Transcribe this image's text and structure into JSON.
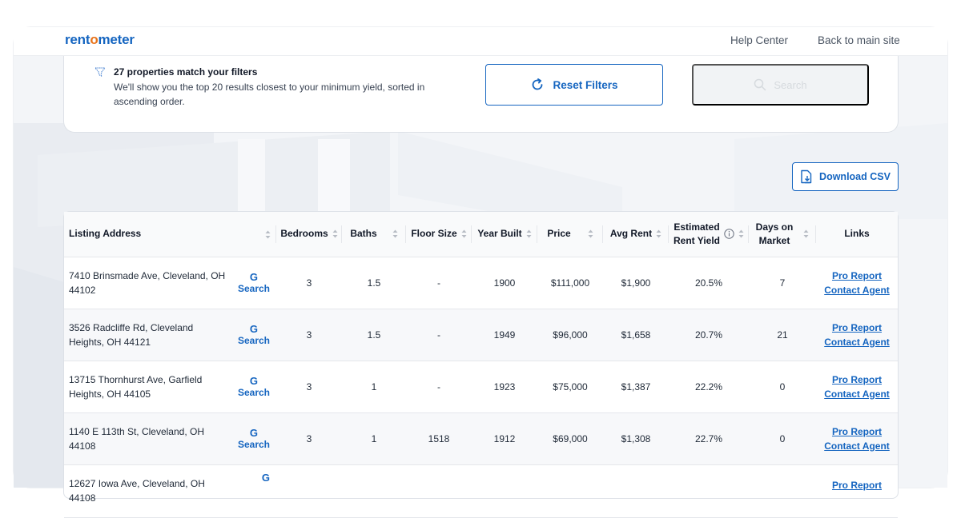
{
  "header": {
    "logo_prefix": "rent",
    "logo_o": "o",
    "logo_suffix": "meter",
    "help_center": "Help Center",
    "back_to_main": "Back to main site"
  },
  "filters": {
    "match_title": "27 properties match your filters",
    "match_desc": "We'll show you the top 20 results closest to your minimum yield, sorted in ascending order.",
    "reset_label": "Reset Filters",
    "search_label": "Search"
  },
  "download": {
    "label": "Download CSV"
  },
  "table": {
    "columns": {
      "address": "Listing Address",
      "bedrooms": "Bedrooms",
      "baths": "Baths",
      "floor_size": "Floor Size",
      "year_built": "Year Built",
      "price": "Price",
      "avg_rent": "Avg Rent",
      "yield_line1": "Estimated",
      "yield_line2": "Rent Yield",
      "days_line1": "Days on",
      "days_line2": "Market",
      "links": "Links"
    },
    "google_glyph": "G",
    "google_label": "Search",
    "pro_report": "Pro Report",
    "contact_agent": "Contact Agent",
    "rows": [
      {
        "address": "7410 Brinsmade Ave, Cleveland, OH 44102",
        "bedrooms": "3",
        "baths": "1.5",
        "floor_size": "-",
        "year_built": "1900",
        "price": "$111,000",
        "avg_rent": "$1,900",
        "yield": "20.5%",
        "days": "7"
      },
      {
        "address": "3526 Radcliffe Rd, Cleveland Heights, OH 44121",
        "bedrooms": "3",
        "baths": "1.5",
        "floor_size": "-",
        "year_built": "1949",
        "price": "$96,000",
        "avg_rent": "$1,658",
        "yield": "20.7%",
        "days": "21"
      },
      {
        "address": "13715 Thornhurst Ave, Garfield Heights, OH 44105",
        "bedrooms": "3",
        "baths": "1",
        "floor_size": "-",
        "year_built": "1923",
        "price": "$75,000",
        "avg_rent": "$1,387",
        "yield": "22.2%",
        "days": "0"
      },
      {
        "address": "1140 E 113th St, Cleveland, OH 44108",
        "bedrooms": "3",
        "baths": "1",
        "floor_size": "1518",
        "year_built": "1912",
        "price": "$69,000",
        "avg_rent": "$1,308",
        "yield": "22.7%",
        "days": "0"
      },
      {
        "address": "12627 Iowa Ave, Cleveland, OH 44108",
        "bedrooms": "",
        "baths": "",
        "floor_size": "",
        "year_built": "",
        "price": "",
        "avg_rent": "",
        "yield": "",
        "days": ""
      }
    ]
  }
}
